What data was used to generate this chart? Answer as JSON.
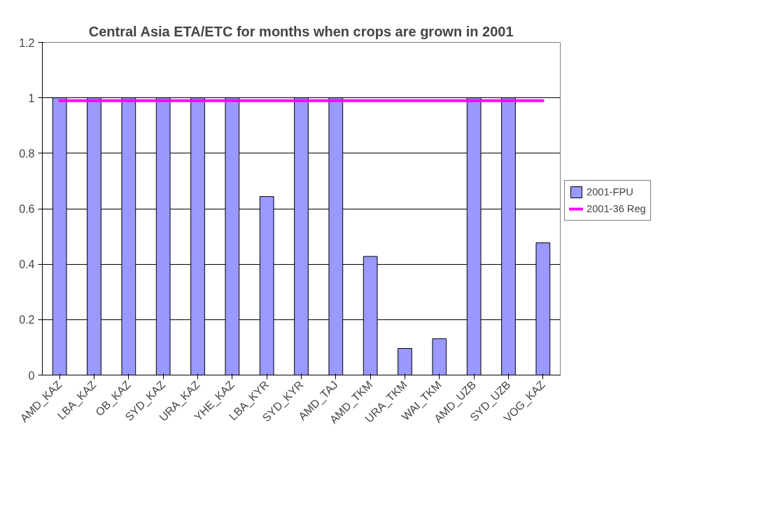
{
  "chart_data": {
    "type": "bar",
    "title": "Central Asia ETA/ETC for months when crops are grown in 2001",
    "categories": [
      "AMD_KAZ",
      "LBA_KAZ",
      "OB_KAZ",
      "SYD_KAZ",
      "URA_KAZ",
      "YHE_KAZ",
      "LBA_KYR",
      "SYD_KYR",
      "AMD_TAJ",
      "AMD_TKM",
      "URA_TKM",
      "WAI_TKM",
      "AMD_UZB",
      "SYD_UZB",
      "VOG_KAZ"
    ],
    "series": [
      {
        "name": "2001-FPU",
        "color": "#9999ff",
        "values": [
          1,
          1,
          1,
          1,
          1,
          1,
          0.644,
          1,
          1,
          0.428,
          0.096,
          0.131,
          1,
          1,
          0.477
        ]
      },
      {
        "name": "2001-36 Reg",
        "type": "line",
        "color": "#ff00ff",
        "values": [
          0.99,
          0.99,
          0.99,
          0.99,
          0.99,
          0.99,
          0.99,
          0.99,
          0.99,
          0.99,
          0.99,
          0.99,
          0.99,
          0.99,
          0.99
        ]
      }
    ],
    "ylim": [
      0,
      1.2
    ],
    "yticks": [
      0,
      0.2,
      0.4,
      0.6,
      0.8,
      1,
      1.2
    ],
    "grid": "y",
    "legend": "right",
    "marker": "none",
    "line_style": "solid"
  }
}
